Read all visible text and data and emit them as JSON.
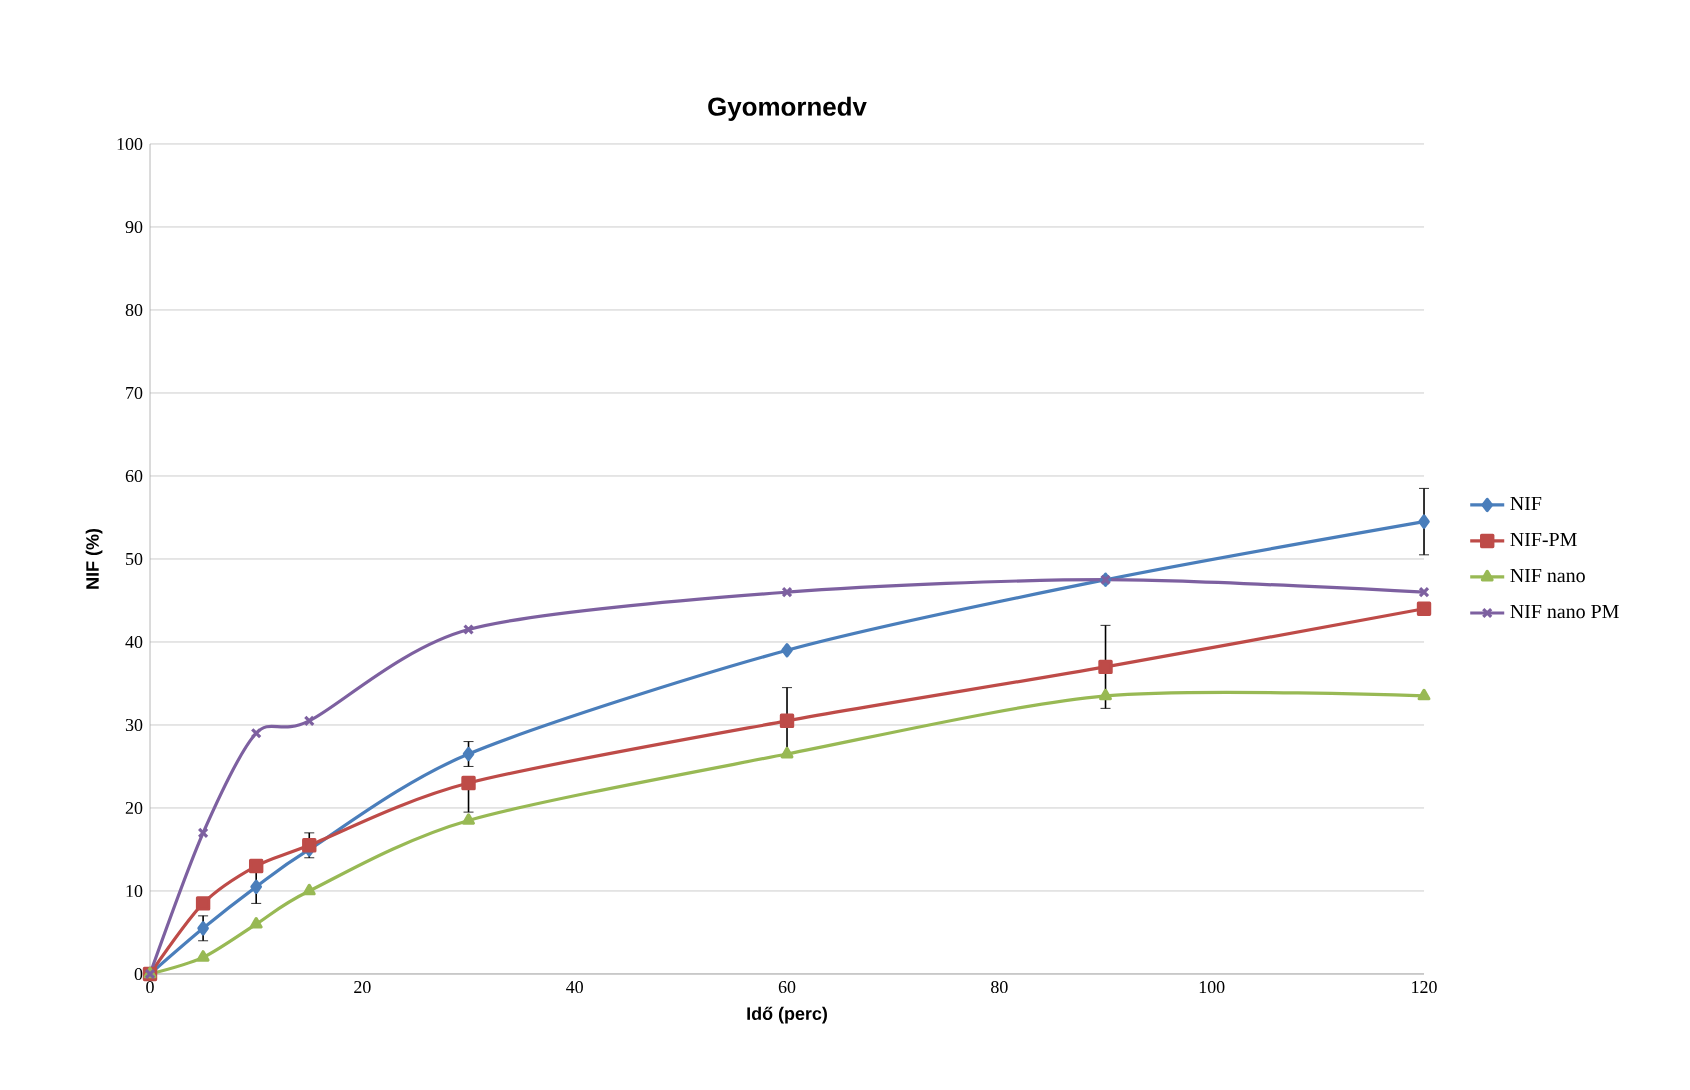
{
  "chart_data": {
    "type": "line",
    "title": "Gyomornedv",
    "xlabel": "Idő (perc)",
    "ylabel": "NIF (%)",
    "x": [
      0,
      5,
      10,
      15,
      30,
      60,
      90,
      120
    ],
    "xlim": [
      0,
      120
    ],
    "xticks": [
      0,
      20,
      40,
      60,
      80,
      100,
      120
    ],
    "ylim": [
      0,
      100
    ],
    "yticks": [
      0,
      10,
      20,
      30,
      40,
      50,
      60,
      70,
      80,
      90,
      100
    ],
    "grid": "y",
    "legend": "right",
    "line_style": "solid",
    "series": [
      {
        "name": "NIF",
        "color": "#4a7ebb",
        "marker": "diamond",
        "values": [
          0,
          5.5,
          10.5,
          15,
          26.5,
          39,
          47.5,
          54.5
        ],
        "errors": [
          null,
          1.5,
          2,
          null,
          1.5,
          null,
          null,
          4
        ]
      },
      {
        "name": "NIF-PM",
        "color": "#be4b48",
        "marker": "square",
        "values": [
          0,
          8.5,
          13,
          15.5,
          23,
          30.5,
          37,
          44
        ],
        "errors": [
          null,
          null,
          null,
          1.5,
          [
            19.5,
            23
          ],
          4,
          5,
          null
        ]
      },
      {
        "name": "NIF nano",
        "color": "#98b954",
        "marker": "triangle",
        "values": [
          0,
          2,
          6,
          10,
          18.5,
          26.5,
          33.5,
          33.5
        ]
      },
      {
        "name": "NIF nano PM",
        "color": "#7d60a0",
        "marker": "cross",
        "values": [
          0,
          17,
          29,
          30.5,
          41.5,
          46,
          47.5,
          46
        ]
      }
    ]
  }
}
